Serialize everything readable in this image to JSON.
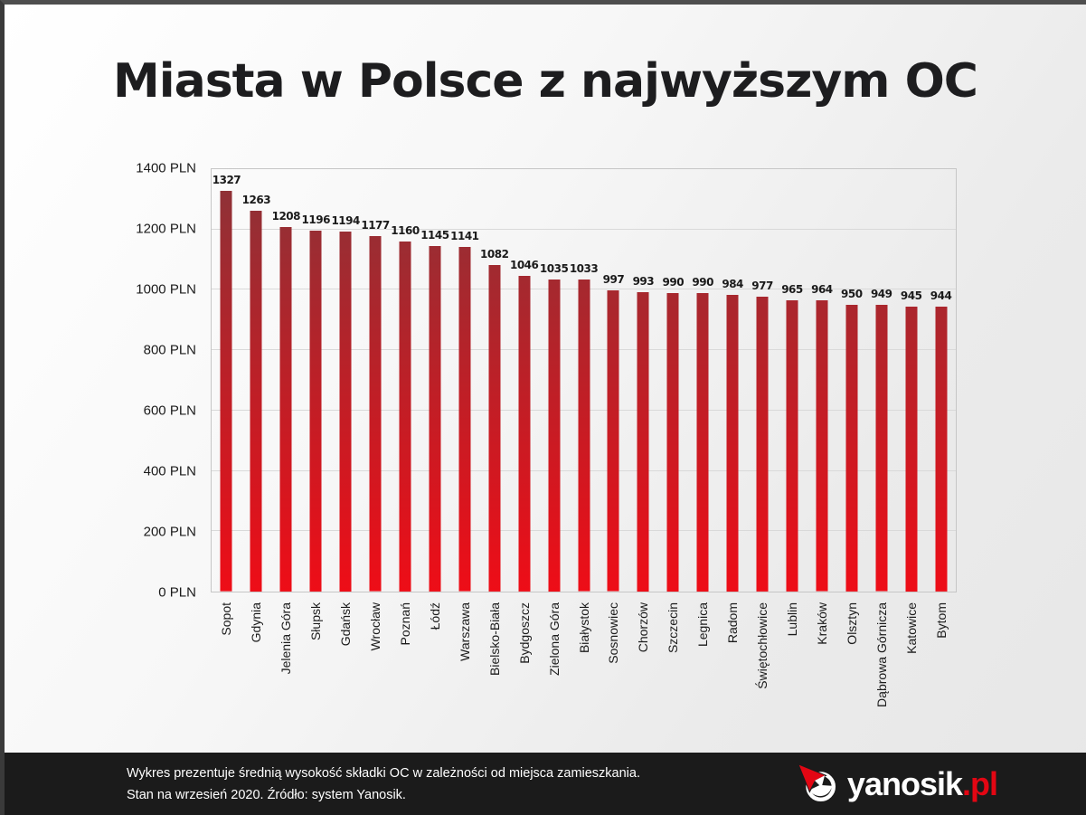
{
  "title": "Miasta w Polsce z najwyższym OC",
  "chart_data": {
    "type": "bar",
    "title": "Miasta w Polsce z najwyższym OC",
    "categories": [
      "Sopot",
      "Gdynia",
      "Jelenia Góra",
      "Słupsk",
      "Gdańsk",
      "Wrocław",
      "Poznań",
      "Łódź",
      "Warszawa",
      "Bielsko-Biała",
      "Bydgoszcz",
      "Zielona Góra",
      "Białystok",
      "Sosnowiec",
      "Chorzów",
      "Szczecin",
      "Legnica",
      "Radom",
      "Świętochłowice",
      "Lublin",
      "Kraków",
      "Olsztyn",
      "Dąbrowa Górnicza",
      "Katowice",
      "Bytom"
    ],
    "values": [
      1327,
      1263,
      1208,
      1196,
      1194,
      1177,
      1160,
      1145,
      1141,
      1082,
      1046,
      1035,
      1033,
      997,
      993,
      990,
      990,
      984,
      977,
      965,
      964,
      950,
      949,
      945,
      944
    ],
    "xlabel": "",
    "ylabel": "",
    "ylim": [
      0,
      1400
    ],
    "yticks": [
      0,
      200,
      400,
      600,
      800,
      1000,
      1200,
      1400
    ],
    "ytick_suffix": " PLN",
    "grid": true,
    "legend": false,
    "bar_gradient": {
      "top": "#8a3338",
      "bottom": "#ee0d17"
    }
  },
  "footer": {
    "line1": "Wykres prezentuje średnią wysokość składki OC w zależności od miejsca zamieszkania.",
    "line2": "Stan na wrzesień 2020. Źródło: system Yanosik.",
    "logo": {
      "text": "yanosik",
      "suffix": ".pl",
      "accent": "#e30613"
    }
  }
}
